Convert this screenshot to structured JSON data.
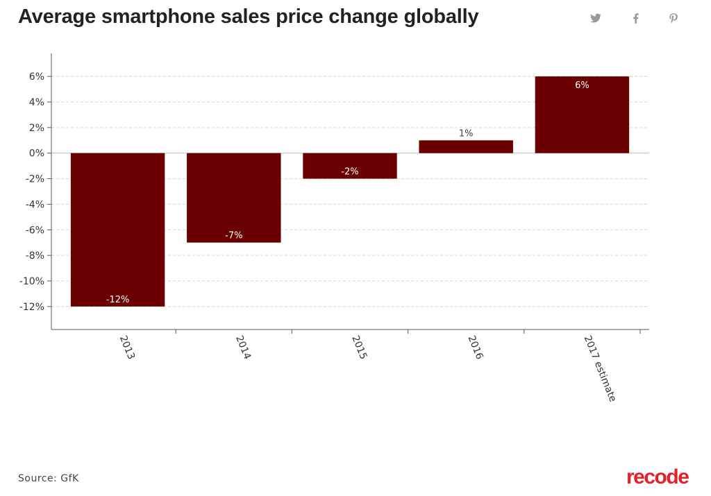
{
  "header": {
    "title": "Average smartphone sales price change globally"
  },
  "share": {
    "twitter_icon": "twitter-icon",
    "facebook_icon": "facebook-icon",
    "pinterest_icon": "pinterest-icon",
    "icon_color": "#999999"
  },
  "footer": {
    "source": "Source: GfK",
    "brand": "recode",
    "brand_color": "#e5202a"
  },
  "chart_data": {
    "type": "bar",
    "title": "Average smartphone sales price change globally",
    "categories": [
      "2013",
      "2014",
      "2015",
      "2016",
      "2017 estimate"
    ],
    "values": [
      -12,
      -7,
      -2,
      1,
      6
    ],
    "data_labels": [
      "-12%",
      "-7%",
      "-2%",
      "1%",
      "6%"
    ],
    "xlabel": "",
    "ylabel": "",
    "ylim": [
      -13.8,
      7.8
    ],
    "yticks": [
      6,
      4,
      2,
      0,
      -2,
      -4,
      -6,
      -8,
      -10,
      -12
    ],
    "ytick_labels": [
      "6%",
      "4%",
      "2%",
      "0%",
      "-2%",
      "-4%",
      "-6%",
      "-8%",
      "-10%",
      "-12%"
    ],
    "grid": true,
    "bar_color": "#6b0000"
  }
}
